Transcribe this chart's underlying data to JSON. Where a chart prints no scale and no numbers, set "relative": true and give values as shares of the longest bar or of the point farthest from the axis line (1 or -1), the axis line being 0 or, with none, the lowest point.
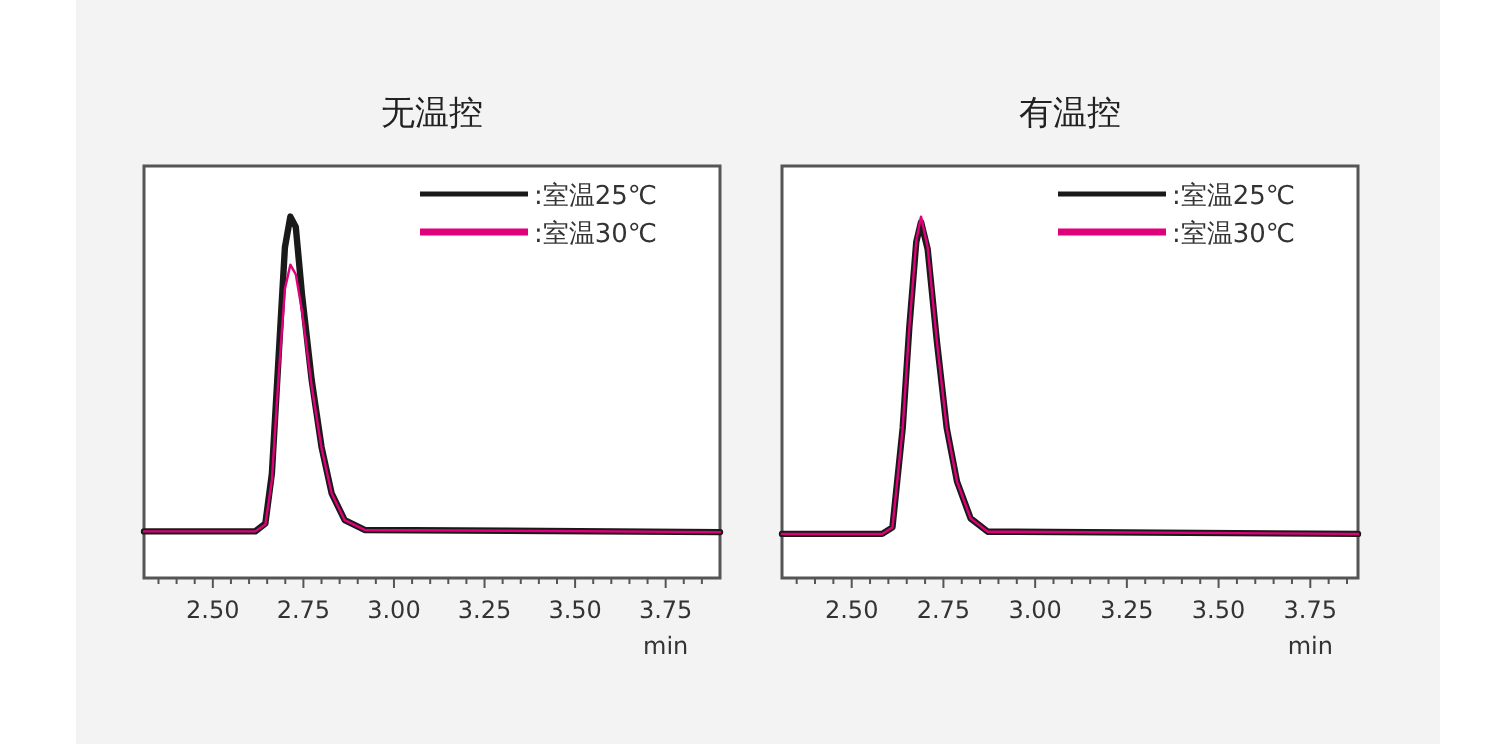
{
  "chart_data": [
    {
      "type": "line",
      "title": "无温控",
      "xlabel": "min",
      "relative": true,
      "legend": "top right",
      "line_style": "solid",
      "marker": "none",
      "xlim": [
        2.31,
        3.9
      ],
      "xticks": [
        {
          "value": 2.35,
          "label": null
        },
        {
          "value": 2.4,
          "label": null
        },
        {
          "value": 2.45,
          "label": null
        },
        {
          "value": 2.5,
          "label": "2.50"
        },
        {
          "value": 2.55,
          "label": null
        },
        {
          "value": 2.6,
          "label": null
        },
        {
          "value": 2.65,
          "label": null
        },
        {
          "value": 2.7,
          "label": null
        },
        {
          "value": 2.75,
          "label": "2.75"
        },
        {
          "value": 2.8,
          "label": null
        },
        {
          "value": 2.85,
          "label": null
        },
        {
          "value": 2.9,
          "label": null
        },
        {
          "value": 2.95,
          "label": null
        },
        {
          "value": 3.0,
          "label": "3.00"
        },
        {
          "value": 3.05,
          "label": null
        },
        {
          "value": 3.1,
          "label": null
        },
        {
          "value": 3.15,
          "label": null
        },
        {
          "value": 3.2,
          "label": null
        },
        {
          "value": 3.25,
          "label": "3.25"
        },
        {
          "value": 3.3,
          "label": null
        },
        {
          "value": 3.35,
          "label": null
        },
        {
          "value": 3.4,
          "label": null
        },
        {
          "value": 3.45,
          "label": null
        },
        {
          "value": 3.5,
          "label": "3.50"
        },
        {
          "value": 3.55,
          "label": null
        },
        {
          "value": 3.6,
          "label": null
        },
        {
          "value": 3.65,
          "label": null
        },
        {
          "value": 3.7,
          "label": null
        },
        {
          "value": 3.75,
          "label": "3.75"
        },
        {
          "value": 3.8,
          "label": null
        },
        {
          "value": 3.85,
          "label": null
        }
      ],
      "series": [
        {
          "name": ":室温25℃",
          "color": "#1a1a1a",
          "x": [
            2.31,
            2.617,
            2.645,
            2.663,
            2.681,
            2.699,
            2.714,
            2.729,
            2.746,
            2.773,
            2.8,
            2.828,
            2.864,
            2.919,
            3.9
          ],
          "values": [
            0.129,
            0.129,
            0.151,
            0.289,
            0.602,
            0.915,
            1,
            0.971,
            0.786,
            0.547,
            0.363,
            0.234,
            0.16,
            0.133,
            0.127
          ]
        },
        {
          "name": ":室温30℃",
          "color": "#e0007a",
          "x": [
            2.31,
            2.617,
            2.645,
            2.663,
            2.681,
            2.699,
            2.714,
            2.729,
            2.746,
            2.773,
            2.8,
            2.828,
            2.864,
            2.919,
            3.9
          ],
          "values": [
            0.129,
            0.129,
            0.148,
            0.27,
            0.55,
            0.8,
            0.867,
            0.84,
            0.74,
            0.53,
            0.36,
            0.234,
            0.16,
            0.133,
            0.127
          ]
        }
      ]
    },
    {
      "type": "line",
      "title": "有温控",
      "xlabel": "min",
      "relative": true,
      "legend": "top right",
      "line_style": "solid",
      "marker": "none",
      "xlim": [
        2.31,
        3.88
      ],
      "xticks": [
        {
          "value": 2.35,
          "label": null
        },
        {
          "value": 2.4,
          "label": null
        },
        {
          "value": 2.45,
          "label": null
        },
        {
          "value": 2.5,
          "label": "2.50"
        },
        {
          "value": 2.55,
          "label": null
        },
        {
          "value": 2.6,
          "label": null
        },
        {
          "value": 2.65,
          "label": null
        },
        {
          "value": 2.7,
          "label": null
        },
        {
          "value": 2.75,
          "label": "2.75"
        },
        {
          "value": 2.8,
          "label": null
        },
        {
          "value": 2.85,
          "label": null
        },
        {
          "value": 2.9,
          "label": null
        },
        {
          "value": 2.95,
          "label": null
        },
        {
          "value": 3.0,
          "label": "3.00"
        },
        {
          "value": 3.05,
          "label": null
        },
        {
          "value": 3.1,
          "label": null
        },
        {
          "value": 3.15,
          "label": null
        },
        {
          "value": 3.2,
          "label": null
        },
        {
          "value": 3.25,
          "label": "3.25"
        },
        {
          "value": 3.3,
          "label": null
        },
        {
          "value": 3.35,
          "label": null
        },
        {
          "value": 3.4,
          "label": null
        },
        {
          "value": 3.45,
          "label": null
        },
        {
          "value": 3.5,
          "label": "3.50"
        },
        {
          "value": 3.55,
          "label": null
        },
        {
          "value": 3.6,
          "label": null
        },
        {
          "value": 3.65,
          "label": null
        },
        {
          "value": 3.7,
          "label": null
        },
        {
          "value": 3.75,
          "label": "3.75"
        },
        {
          "value": 3.8,
          "label": null
        },
        {
          "value": 3.85,
          "label": null
        }
      ],
      "series": [
        {
          "name": ":室温25℃",
          "color": "#1a1a1a",
          "x": [
            2.31,
            2.583,
            2.611,
            2.639,
            2.657,
            2.676,
            2.689,
            2.707,
            2.732,
            2.759,
            2.787,
            2.824,
            2.871,
            2.917,
            3.88
          ],
          "values": [
            0.122,
            0.122,
            0.14,
            0.415,
            0.693,
            0.93,
            0.985,
            0.91,
            0.656,
            0.415,
            0.267,
            0.165,
            0.128,
            0.128,
            0.122
          ]
        },
        {
          "name": ":室温30℃",
          "color": "#e0007a",
          "x": [
            2.31,
            2.583,
            2.611,
            2.639,
            2.657,
            2.676,
            2.689,
            2.707,
            2.732,
            2.759,
            2.787,
            2.824,
            2.871,
            2.917,
            3.88
          ],
          "values": [
            0.122,
            0.122,
            0.14,
            0.415,
            0.693,
            0.933,
            1,
            0.915,
            0.656,
            0.415,
            0.267,
            0.165,
            0.128,
            0.128,
            0.122
          ]
        }
      ]
    }
  ]
}
